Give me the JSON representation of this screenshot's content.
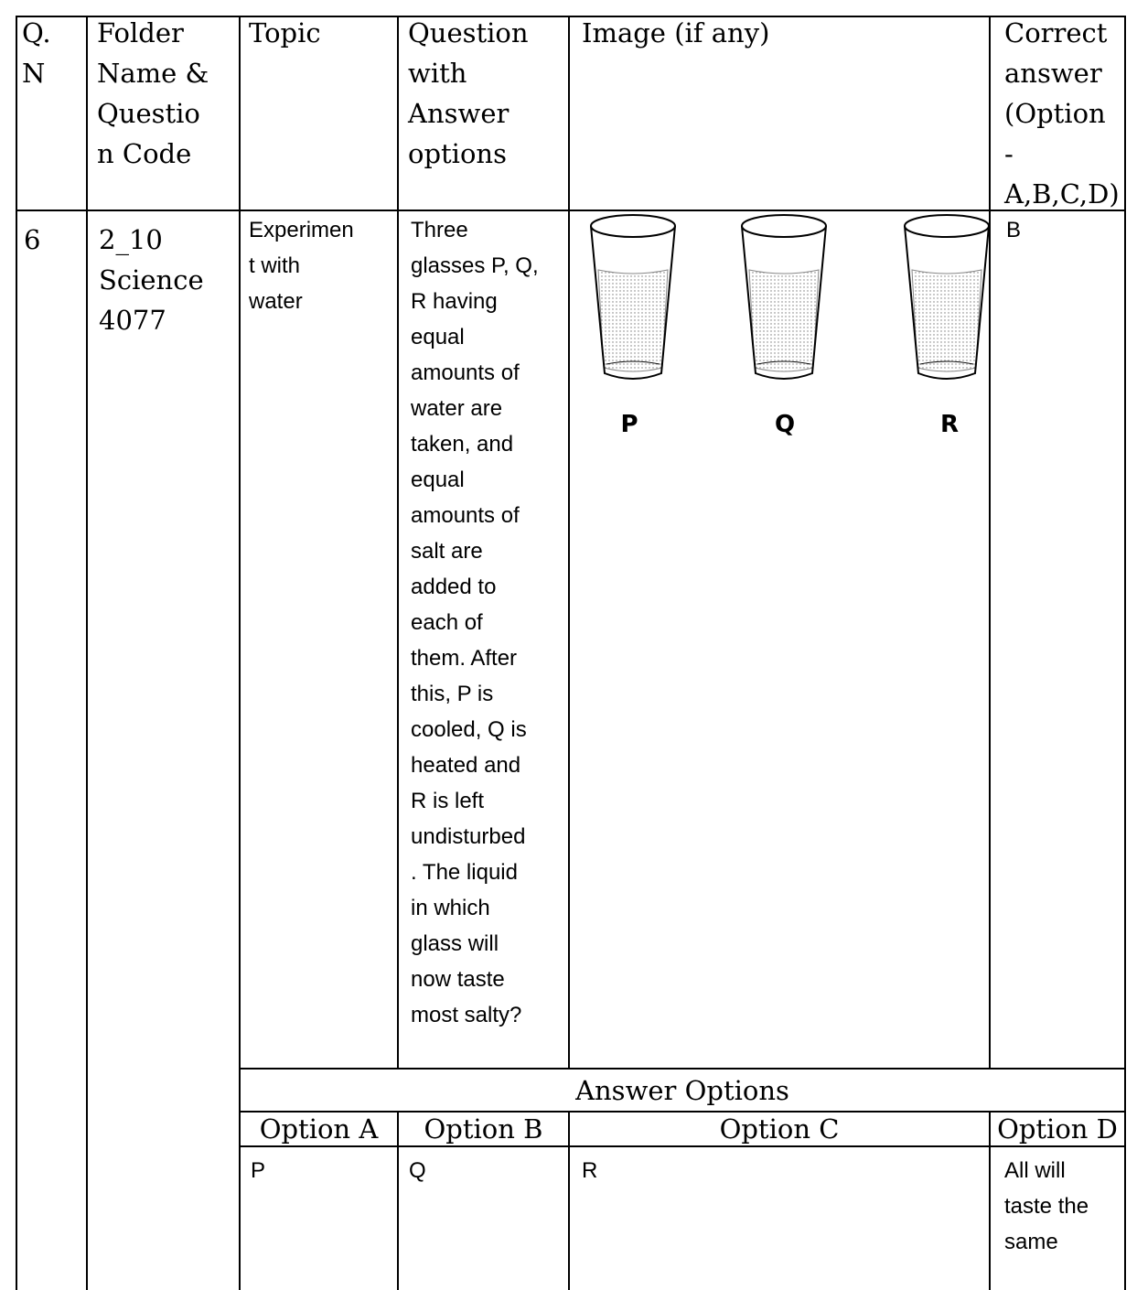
{
  "header": [
    [
      "Q.",
      "N"
    ],
    [
      "Folder",
      "Name &",
      "Questio",
      "n Code"
    ],
    [
      "Topic"
    ],
    [
      "Question",
      "with",
      "Answer",
      "options"
    ],
    [
      "Image (if any)"
    ],
    [
      "Correct",
      "answer",
      "(Option",
      "-",
      "A,B,C,D)"
    ]
  ],
  "row": {
    "number": "6",
    "folder": [
      "2_10",
      "Science",
      "4077"
    ],
    "topic": [
      "Experimen",
      "t with",
      "water"
    ],
    "question": [
      "Three",
      "glasses P, Q,",
      "R having",
      "equal",
      "amounts of",
      "water are",
      "taken, and",
      "equal",
      "amounts of",
      "salt are",
      "added to",
      "each of",
      "them. After",
      "this, P is",
      "cooled, Q is",
      "heated and",
      "R is left",
      "undisturbed",
      ". The liquid",
      "in which",
      "glass will",
      "now taste",
      "most salty?"
    ],
    "image_labels": [
      "P",
      "Q",
      "R"
    ],
    "correct": "B"
  },
  "answer_options": {
    "title": "Answer  Options",
    "headers": [
      "Option A",
      "Option B",
      "Option C",
      "Option D"
    ],
    "values": [
      [
        "P"
      ],
      [
        "Q"
      ],
      [
        "R"
      ],
      [
        "All will",
        "taste the",
        "same"
      ]
    ]
  }
}
